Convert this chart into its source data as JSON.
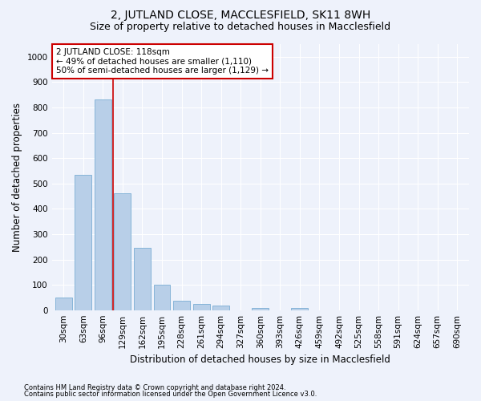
{
  "title": "2, JUTLAND CLOSE, MACCLESFIELD, SK11 8WH",
  "subtitle": "Size of property relative to detached houses in Macclesfield",
  "xlabel": "Distribution of detached houses by size in Macclesfield",
  "ylabel": "Number of detached properties",
  "footer_line1": "Contains HM Land Registry data © Crown copyright and database right 2024.",
  "footer_line2": "Contains public sector information licensed under the Open Government Licence v3.0.",
  "categories": [
    "30sqm",
    "63sqm",
    "96sqm",
    "129sqm",
    "162sqm",
    "195sqm",
    "228sqm",
    "261sqm",
    "294sqm",
    "327sqm",
    "360sqm",
    "393sqm",
    "426sqm",
    "459sqm",
    "492sqm",
    "525sqm",
    "558sqm",
    "591sqm",
    "624sqm",
    "657sqm",
    "690sqm"
  ],
  "values": [
    50,
    535,
    830,
    460,
    245,
    100,
    37,
    25,
    18,
    0,
    10,
    0,
    10,
    0,
    0,
    0,
    0,
    0,
    0,
    0,
    0
  ],
  "bar_color": "#b8cfe8",
  "bar_edge_color": "#7aadd4",
  "ylim": [
    0,
    1050
  ],
  "yticks": [
    0,
    100,
    200,
    300,
    400,
    500,
    600,
    700,
    800,
    900,
    1000
  ],
  "vline_color": "#cc0000",
  "annotation_text": "2 JUTLAND CLOSE: 118sqm\n← 49% of detached houses are smaller (1,110)\n50% of semi-detached houses are larger (1,129) →",
  "annotation_box_facecolor": "#ffffff",
  "annotation_box_edgecolor": "#cc0000",
  "bg_color": "#eef2fb",
  "plot_bg_color": "#eef2fb",
  "grid_color": "#ffffff",
  "title_fontsize": 10,
  "subtitle_fontsize": 9,
  "xlabel_fontsize": 8.5,
  "ylabel_fontsize": 8.5,
  "tick_fontsize": 7.5,
  "annotation_fontsize": 7.5
}
